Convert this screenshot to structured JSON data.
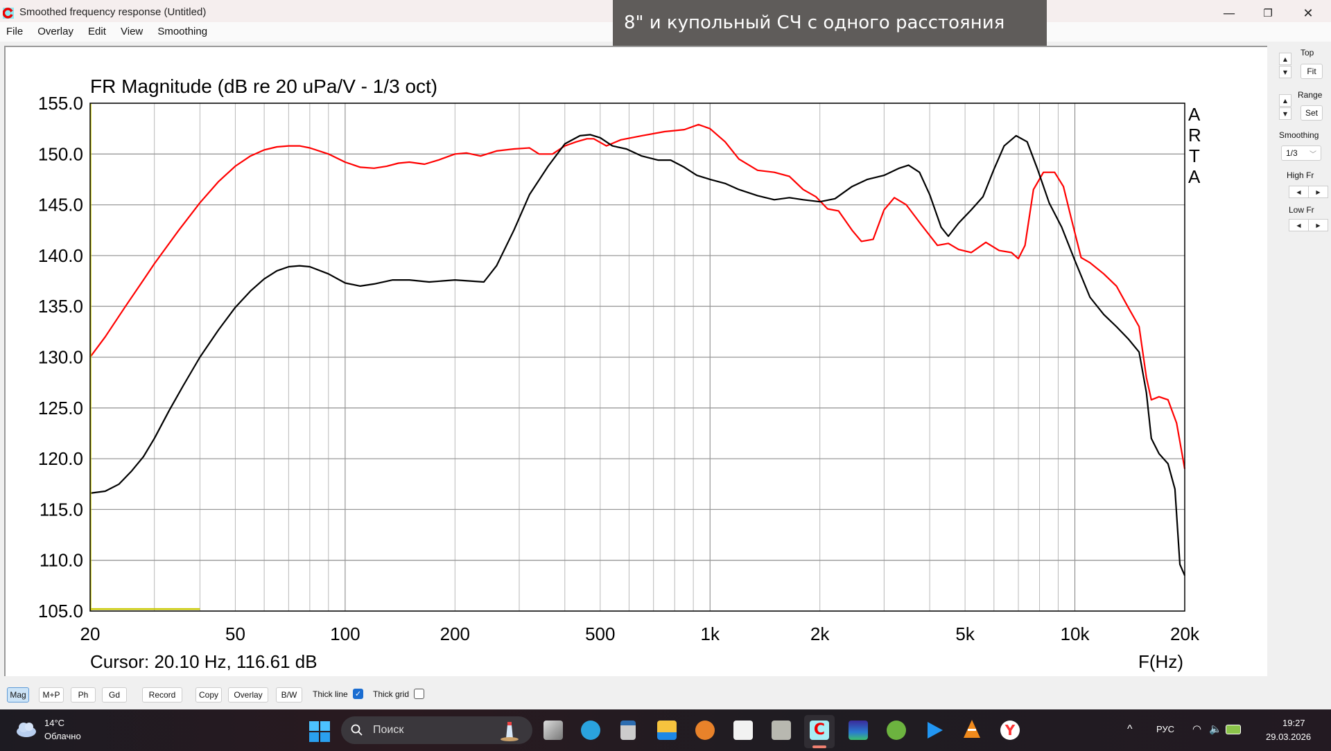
{
  "window": {
    "title": "Smoothed frequency response (Untitled)",
    "controls": {
      "minimize": "—",
      "maximize": "❐",
      "close": "✕"
    }
  },
  "menu": [
    "File",
    "Overlay",
    "Edit",
    "View",
    "Smoothing"
  ],
  "overlay_caption": "8\" и купольный СЧ с одного расстояния",
  "chart": {
    "title": "FR Magnitude (dB re 20 uPa/V - 1/3 oct)",
    "cursor_text": "Cursor: 20.10 Hz, 116.61 dB",
    "xlabel": "F(Hz)",
    "watermark": [
      "A",
      "R",
      "T",
      "A"
    ]
  },
  "chart_data": {
    "type": "line",
    "title": "FR Magnitude (dB re 20 uPa/V - 1/3 oct)",
    "xlabel": "F(Hz)",
    "ylabel": "dB",
    "xscale": "log",
    "xlim": [
      20,
      20000
    ],
    "ylim": [
      105,
      155
    ],
    "grid": true,
    "yticks": [
      "155.0",
      "150.0",
      "145.0",
      "140.0",
      "135.0",
      "130.0",
      "125.0",
      "120.0",
      "115.0",
      "110.0",
      "105.0"
    ],
    "xticks": [
      {
        "f": 20,
        "label": "20"
      },
      {
        "f": 50,
        "label": "50"
      },
      {
        "f": 100,
        "label": "100"
      },
      {
        "f": 200,
        "label": "200"
      },
      {
        "f": 500,
        "label": "500"
      },
      {
        "f": 1000,
        "label": "1k"
      },
      {
        "f": 2000,
        "label": "2k"
      },
      {
        "f": 5000,
        "label": "5k"
      },
      {
        "f": 10000,
        "label": "10k"
      },
      {
        "f": 20000,
        "label": "20k"
      }
    ],
    "series": [
      {
        "name": "red",
        "color": "#ff0000",
        "points": [
          [
            20,
            130.0
          ],
          [
            22,
            132.0
          ],
          [
            25,
            135.0
          ],
          [
            28,
            137.6
          ],
          [
            30,
            139.2
          ],
          [
            35,
            142.5
          ],
          [
            40,
            145.2
          ],
          [
            45,
            147.3
          ],
          [
            50,
            148.8
          ],
          [
            55,
            149.8
          ],
          [
            60,
            150.4
          ],
          [
            65,
            150.7
          ],
          [
            70,
            150.8
          ],
          [
            75,
            150.8
          ],
          [
            80,
            150.6
          ],
          [
            90,
            150.0
          ],
          [
            100,
            149.2
          ],
          [
            110,
            148.7
          ],
          [
            120,
            148.6
          ],
          [
            130,
            148.8
          ],
          [
            140,
            149.1
          ],
          [
            150,
            149.2
          ],
          [
            165,
            149.0
          ],
          [
            180,
            149.4
          ],
          [
            200,
            150.0
          ],
          [
            215,
            150.1
          ],
          [
            235,
            149.8
          ],
          [
            260,
            150.3
          ],
          [
            290,
            150.5
          ],
          [
            320,
            150.6
          ],
          [
            340,
            150.0
          ],
          [
            370,
            150.0
          ],
          [
            400,
            150.8
          ],
          [
            430,
            151.2
          ],
          [
            460,
            151.5
          ],
          [
            480,
            151.5
          ],
          [
            520,
            150.8
          ],
          [
            570,
            151.4
          ],
          [
            650,
            151.8
          ],
          [
            750,
            152.2
          ],
          [
            850,
            152.4
          ],
          [
            930,
            152.9
          ],
          [
            1000,
            152.5
          ],
          [
            1100,
            151.2
          ],
          [
            1200,
            149.5
          ],
          [
            1350,
            148.4
          ],
          [
            1500,
            148.2
          ],
          [
            1650,
            147.8
          ],
          [
            1800,
            146.5
          ],
          [
            1950,
            145.8
          ],
          [
            2100,
            144.6
          ],
          [
            2250,
            144.4
          ],
          [
            2450,
            142.5
          ],
          [
            2600,
            141.4
          ],
          [
            2800,
            141.6
          ],
          [
            3000,
            144.5
          ],
          [
            3200,
            145.7
          ],
          [
            3450,
            145.0
          ],
          [
            3800,
            143.0
          ],
          [
            4200,
            141.0
          ],
          [
            4500,
            141.2
          ],
          [
            4800,
            140.6
          ],
          [
            5200,
            140.3
          ],
          [
            5700,
            141.3
          ],
          [
            6200,
            140.5
          ],
          [
            6700,
            140.3
          ],
          [
            7000,
            139.7
          ],
          [
            7300,
            141.0
          ],
          [
            7700,
            146.5
          ],
          [
            8200,
            148.2
          ],
          [
            8800,
            148.2
          ],
          [
            9300,
            146.8
          ],
          [
            9800,
            143.5
          ],
          [
            10400,
            139.8
          ],
          [
            11000,
            139.3
          ],
          [
            12000,
            138.2
          ],
          [
            13000,
            137.0
          ],
          [
            14000,
            134.9
          ],
          [
            15000,
            133.0
          ],
          [
            15700,
            128.0
          ],
          [
            16200,
            125.8
          ],
          [
            17000,
            126.1
          ],
          [
            18000,
            125.8
          ],
          [
            19000,
            123.5
          ],
          [
            20000,
            119.0
          ]
        ]
      },
      {
        "name": "black",
        "color": "#000000",
        "points": [
          [
            20,
            116.6
          ],
          [
            22,
            116.8
          ],
          [
            24,
            117.5
          ],
          [
            26,
            118.8
          ],
          [
            28,
            120.2
          ],
          [
            30,
            122.0
          ],
          [
            33,
            124.8
          ],
          [
            36,
            127.2
          ],
          [
            40,
            130.0
          ],
          [
            45,
            132.7
          ],
          [
            50,
            134.9
          ],
          [
            55,
            136.5
          ],
          [
            60,
            137.7
          ],
          [
            65,
            138.5
          ],
          [
            70,
            138.9
          ],
          [
            75,
            139.0
          ],
          [
            80,
            138.9
          ],
          [
            90,
            138.2
          ],
          [
            100,
            137.3
          ],
          [
            110,
            137.0
          ],
          [
            120,
            137.2
          ],
          [
            135,
            137.6
          ],
          [
            150,
            137.6
          ],
          [
            170,
            137.4
          ],
          [
            200,
            137.6
          ],
          [
            220,
            137.5
          ],
          [
            240,
            137.4
          ],
          [
            260,
            139.0
          ],
          [
            290,
            142.5
          ],
          [
            320,
            146.0
          ],
          [
            360,
            148.8
          ],
          [
            400,
            151.0
          ],
          [
            440,
            151.8
          ],
          [
            470,
            151.9
          ],
          [
            500,
            151.6
          ],
          [
            540,
            150.8
          ],
          [
            590,
            150.5
          ],
          [
            650,
            149.8
          ],
          [
            720,
            149.4
          ],
          [
            780,
            149.4
          ],
          [
            850,
            148.7
          ],
          [
            920,
            147.9
          ],
          [
            1000,
            147.5
          ],
          [
            1100,
            147.1
          ],
          [
            1200,
            146.5
          ],
          [
            1350,
            145.9
          ],
          [
            1500,
            145.5
          ],
          [
            1650,
            145.7
          ],
          [
            1800,
            145.5
          ],
          [
            2000,
            145.3
          ],
          [
            2200,
            145.6
          ],
          [
            2450,
            146.8
          ],
          [
            2700,
            147.5
          ],
          [
            3000,
            147.9
          ],
          [
            3300,
            148.6
          ],
          [
            3500,
            148.9
          ],
          [
            3750,
            148.2
          ],
          [
            4000,
            146.0
          ],
          [
            4300,
            142.8
          ],
          [
            4500,
            141.9
          ],
          [
            4800,
            143.2
          ],
          [
            5200,
            144.5
          ],
          [
            5600,
            145.8
          ],
          [
            6000,
            148.5
          ],
          [
            6400,
            150.8
          ],
          [
            6900,
            151.8
          ],
          [
            7400,
            151.2
          ],
          [
            7900,
            148.5
          ],
          [
            8500,
            145.2
          ],
          [
            9200,
            142.8
          ],
          [
            10000,
            139.5
          ],
          [
            11000,
            135.9
          ],
          [
            12000,
            134.2
          ],
          [
            13000,
            133.0
          ],
          [
            14000,
            131.8
          ],
          [
            15000,
            130.5
          ],
          [
            15700,
            126.5
          ],
          [
            16200,
            122.0
          ],
          [
            17000,
            120.5
          ],
          [
            18000,
            119.5
          ],
          [
            18800,
            117.0
          ],
          [
            19400,
            109.6
          ],
          [
            20000,
            108.5
          ]
        ]
      },
      {
        "name": "yellow-marker",
        "color": "#c8c800",
        "points": [
          [
            20,
            105.2
          ],
          [
            40,
            105.2
          ]
        ]
      }
    ]
  },
  "right_panel": {
    "top_label": "Top",
    "fit_label": "Fit",
    "range_label": "Range",
    "set_label": "Set",
    "smoothing_label": "Smoothing",
    "smoothing_value": "1/3",
    "high_fr_label": "High Fr",
    "low_fr_label": "Low Fr"
  },
  "bottom_toolbar": {
    "buttons": [
      "Mag",
      "M+P",
      "Ph",
      "Gd",
      "Record",
      "Copy",
      "Overlay",
      "B/W"
    ],
    "active": "Mag",
    "thick_line_label": "Thick line",
    "thick_line_checked": true,
    "thick_grid_label": "Thick grid",
    "thick_grid_checked": false
  },
  "taskbar": {
    "weather_temp": "14°C",
    "weather_desc": "Облачно",
    "search_placeholder": "Поиск",
    "lang": "РУС",
    "time": "19:27",
    "date": "29.03.2026",
    "apps": [
      "task-view",
      "telegram",
      "calculator",
      "file-explorer",
      "camera-app",
      "frequency-tool",
      "spectrum-tool",
      "arta",
      "rew",
      "utorrent",
      "media-player",
      "vlc",
      "yandex-browser"
    ]
  }
}
